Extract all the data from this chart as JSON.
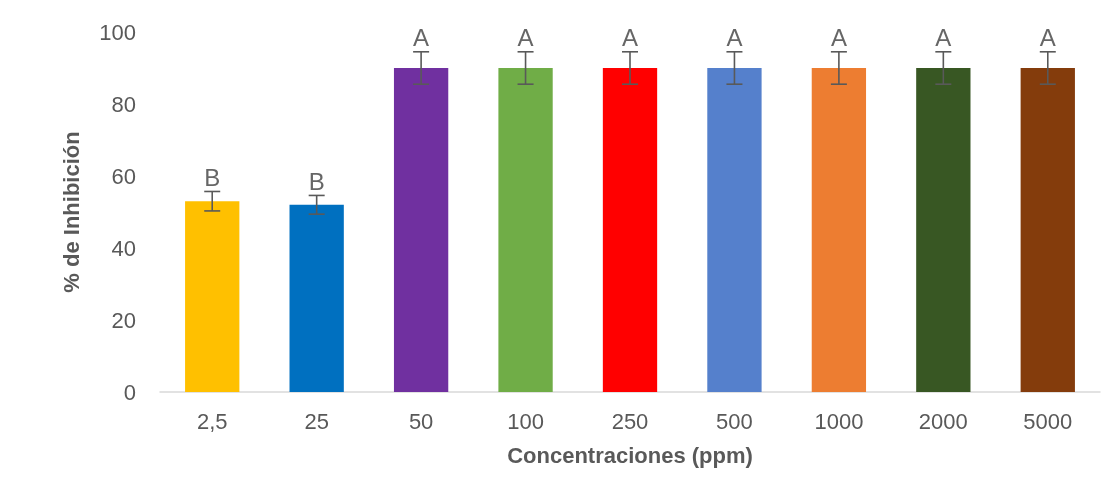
{
  "chart_data": {
    "type": "bar",
    "xlabel": "Concentraciones (ppm)",
    "ylabel": "% de Inhibición",
    "categories": [
      "2,5",
      "25",
      "50",
      "100",
      "250",
      "500",
      "1000",
      "2000",
      "5000"
    ],
    "values": [
      53,
      52,
      90,
      90,
      90,
      90,
      90,
      90,
      90
    ],
    "colors": [
      "#ffc000",
      "#0070c0",
      "#7030a0",
      "#70ad47",
      "#ff0000",
      "#5580cc",
      "#ed7d31",
      "#385723",
      "#843c0c"
    ],
    "errors": [
      2.7,
      2.6,
      4.5,
      4.5,
      4.5,
      4.5,
      4.5,
      4.5,
      4.5
    ],
    "ylim": [
      0,
      100
    ],
    "yticks": [
      0,
      20,
      40,
      60,
      80,
      100
    ],
    "grid": false,
    "annotations": [
      {
        "text": "B",
        "x": "2,5",
        "y": 55.7
      },
      {
        "text": "B",
        "x": "25",
        "y": 54.6
      },
      {
        "text": "A",
        "x": "50",
        "y": 94.5
      },
      {
        "text": "A",
        "x": "100",
        "y": 94.5
      },
      {
        "text": "A",
        "x": "250",
        "y": 94.5
      },
      {
        "text": "A",
        "x": "500",
        "y": 94.5
      },
      {
        "text": "A",
        "x": "1000",
        "y": 94.5
      },
      {
        "text": "A",
        "x": "2000",
        "y": 94.5
      },
      {
        "text": "A",
        "x": "5000",
        "y": 94.5
      }
    ]
  }
}
